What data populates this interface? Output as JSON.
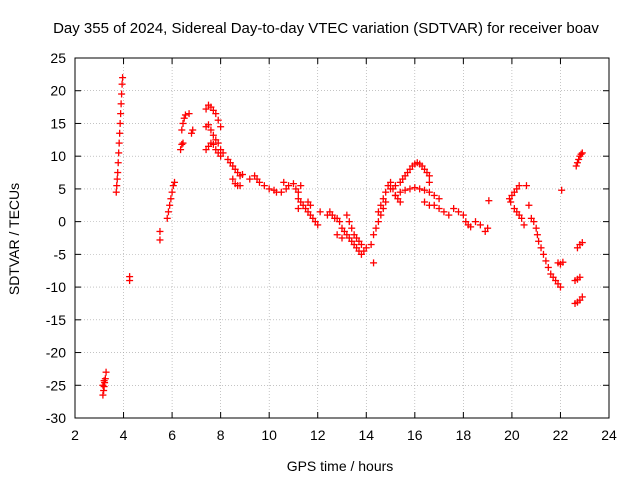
{
  "chart_data": {
    "type": "scatter",
    "title": "Day 355 of 2024, Sidereal Day-to-day VTEC variation (SDTVAR) for receiver boav",
    "xlabel": "GPS time / hours",
    "ylabel": "SDTVAR / TECUs",
    "xlim": [
      2,
      24
    ],
    "ylim": [
      -30,
      25
    ],
    "xticks": [
      2,
      4,
      6,
      8,
      10,
      12,
      14,
      16,
      18,
      20,
      22,
      24
    ],
    "yticks": [
      -30,
      -25,
      -20,
      -15,
      -10,
      -5,
      0,
      5,
      10,
      15,
      20,
      25
    ],
    "grid": true,
    "marker": "plus",
    "color": "#ff0000",
    "series": [
      {
        "name": "SDTVAR",
        "points": [
          [
            3.15,
            -26.5
          ],
          [
            3.18,
            -25.8
          ],
          [
            3.2,
            -25.2
          ],
          [
            3.22,
            -24.6
          ],
          [
            3.25,
            -24.0
          ],
          [
            3.28,
            -23.0
          ],
          [
            3.15,
            -25.0
          ],
          [
            3.2,
            -24.3
          ],
          [
            3.7,
            4.5
          ],
          [
            3.72,
            5.5
          ],
          [
            3.74,
            6.5
          ],
          [
            3.76,
            7.5
          ],
          [
            3.78,
            9.0
          ],
          [
            3.8,
            10.5
          ],
          [
            3.82,
            12.0
          ],
          [
            3.84,
            13.5
          ],
          [
            3.86,
            15.0
          ],
          [
            3.88,
            16.5
          ],
          [
            3.9,
            18.0
          ],
          [
            3.92,
            19.5
          ],
          [
            3.94,
            21.0
          ],
          [
            3.96,
            22.0
          ],
          [
            4.25,
            -8.4
          ],
          [
            4.25,
            -9.0
          ],
          [
            5.5,
            -1.5
          ],
          [
            5.5,
            -2.8
          ],
          [
            5.8,
            0.5
          ],
          [
            5.85,
            1.5
          ],
          [
            5.9,
            2.5
          ],
          [
            5.95,
            3.5
          ],
          [
            6.0,
            4.5
          ],
          [
            6.05,
            5.5
          ],
          [
            6.1,
            6.0
          ],
          [
            6.35,
            11.0
          ],
          [
            6.4,
            11.8
          ],
          [
            6.45,
            12.0
          ],
          [
            6.4,
            14.0
          ],
          [
            6.45,
            15.0
          ],
          [
            6.5,
            15.8
          ],
          [
            6.55,
            16.3
          ],
          [
            6.7,
            16.5
          ],
          [
            6.8,
            13.5
          ],
          [
            6.85,
            14.0
          ],
          [
            7.4,
            17.2
          ],
          [
            7.5,
            17.8
          ],
          [
            7.6,
            17.5
          ],
          [
            7.7,
            17.0
          ],
          [
            7.8,
            16.5
          ],
          [
            7.9,
            15.5
          ],
          [
            8.0,
            14.5
          ],
          [
            7.4,
            14.5
          ],
          [
            7.5,
            14.8
          ],
          [
            7.6,
            14.0
          ],
          [
            7.7,
            13.2
          ],
          [
            7.8,
            12.5
          ],
          [
            7.9,
            12.0
          ],
          [
            8.0,
            11.0
          ],
          [
            8.1,
            10.5
          ],
          [
            7.4,
            11.0
          ],
          [
            7.5,
            11.5
          ],
          [
            7.6,
            12.0
          ],
          [
            7.7,
            11.8
          ],
          [
            7.8,
            11.0
          ],
          [
            7.9,
            10.5
          ],
          [
            8.0,
            10.0
          ],
          [
            8.3,
            9.5
          ],
          [
            8.4,
            9.0
          ],
          [
            8.5,
            8.5
          ],
          [
            8.6,
            8.0
          ],
          [
            8.7,
            7.5
          ],
          [
            8.8,
            7.0
          ],
          [
            8.9,
            7.2
          ],
          [
            8.5,
            6.5
          ],
          [
            8.6,
            5.8
          ],
          [
            8.7,
            5.5
          ],
          [
            8.8,
            5.5
          ],
          [
            9.2,
            6.5
          ],
          [
            9.4,
            7.0
          ],
          [
            9.5,
            6.5
          ],
          [
            9.6,
            6.0
          ],
          [
            9.8,
            5.5
          ],
          [
            10.0,
            5.0
          ],
          [
            10.2,
            4.8
          ],
          [
            10.3,
            4.5
          ],
          [
            10.5,
            4.5
          ],
          [
            10.7,
            5.0
          ],
          [
            10.6,
            6.0
          ],
          [
            10.8,
            5.5
          ],
          [
            11.0,
            5.8
          ],
          [
            11.1,
            5.0
          ],
          [
            11.2,
            4.5
          ],
          [
            11.2,
            3.5
          ],
          [
            11.3,
            3.0
          ],
          [
            11.2,
            2.0
          ],
          [
            11.3,
            5.5
          ],
          [
            11.4,
            2.5
          ],
          [
            11.5,
            2.0
          ],
          [
            11.6,
            1.5
          ],
          [
            11.7,
            1.0
          ],
          [
            11.8,
            0.5
          ],
          [
            11.9,
            0.0
          ],
          [
            12.0,
            -0.5
          ],
          [
            12.1,
            1.5
          ],
          [
            11.6,
            3.0
          ],
          [
            11.7,
            2.5
          ],
          [
            12.4,
            1.0
          ],
          [
            12.5,
            1.5
          ],
          [
            12.6,
            1.0
          ],
          [
            12.7,
            0.5
          ],
          [
            12.8,
            0.5
          ],
          [
            12.9,
            0.0
          ],
          [
            13.0,
            -1.0
          ],
          [
            13.1,
            -1.5
          ],
          [
            13.2,
            -2.0
          ],
          [
            13.3,
            -2.5
          ],
          [
            13.4,
            -3.0
          ],
          [
            13.5,
            -3.5
          ],
          [
            13.6,
            -4.0
          ],
          [
            13.7,
            -4.5
          ],
          [
            13.8,
            -5.0
          ],
          [
            13.9,
            -4.5
          ],
          [
            14.0,
            -4.0
          ],
          [
            13.2,
            1.0
          ],
          [
            13.3,
            0.0
          ],
          [
            13.4,
            -1.0
          ],
          [
            13.5,
            -2.0
          ],
          [
            13.6,
            -2.5
          ],
          [
            13.7,
            -3.0
          ],
          [
            13.8,
            -3.5
          ],
          [
            12.8,
            -2.0
          ],
          [
            13.0,
            -2.5
          ],
          [
            14.3,
            -6.3
          ],
          [
            14.2,
            -3.5
          ],
          [
            14.3,
            -2.0
          ],
          [
            14.4,
            -1.0
          ],
          [
            14.5,
            0.0
          ],
          [
            14.6,
            1.0
          ],
          [
            14.7,
            2.0
          ],
          [
            14.8,
            3.0
          ],
          [
            14.5,
            1.5
          ],
          [
            14.6,
            2.5
          ],
          [
            14.7,
            3.5
          ],
          [
            14.8,
            4.5
          ],
          [
            14.9,
            5.5
          ],
          [
            15.0,
            6.0
          ],
          [
            15.1,
            5.0
          ],
          [
            15.2,
            4.0
          ],
          [
            15.3,
            3.5
          ],
          [
            15.4,
            3.0
          ],
          [
            15.0,
            5.0
          ],
          [
            15.2,
            5.5
          ],
          [
            15.4,
            6.0
          ],
          [
            15.5,
            6.5
          ],
          [
            15.6,
            7.0
          ],
          [
            15.7,
            7.5
          ],
          [
            15.8,
            8.0
          ],
          [
            15.9,
            8.5
          ],
          [
            16.0,
            8.8
          ],
          [
            16.1,
            9.0
          ],
          [
            16.2,
            8.8
          ],
          [
            16.3,
            8.5
          ],
          [
            16.4,
            8.0
          ],
          [
            16.5,
            7.5
          ],
          [
            16.6,
            7.0
          ],
          [
            16.6,
            6.0
          ],
          [
            15.2,
            4.0
          ],
          [
            15.4,
            4.5
          ],
          [
            15.6,
            4.8
          ],
          [
            15.8,
            5.0
          ],
          [
            16.0,
            5.2
          ],
          [
            16.2,
            5.0
          ],
          [
            16.4,
            4.8
          ],
          [
            16.6,
            4.5
          ],
          [
            16.8,
            4.0
          ],
          [
            17.0,
            3.5
          ],
          [
            16.4,
            3.0
          ],
          [
            16.6,
            2.5
          ],
          [
            16.8,
            2.5
          ],
          [
            17.0,
            2.0
          ],
          [
            17.2,
            1.5
          ],
          [
            17.4,
            1.0
          ],
          [
            17.6,
            2.0
          ],
          [
            17.8,
            1.5
          ],
          [
            18.0,
            1.0
          ],
          [
            18.1,
            0.0
          ],
          [
            18.2,
            -0.5
          ],
          [
            18.3,
            -0.8
          ],
          [
            18.5,
            0.0
          ],
          [
            18.7,
            -0.5
          ],
          [
            18.9,
            -1.5
          ],
          [
            19.0,
            -1.0
          ],
          [
            19.05,
            3.2
          ],
          [
            19.9,
            3.5
          ],
          [
            20.0,
            4.0
          ],
          [
            20.1,
            4.5
          ],
          [
            20.2,
            5.0
          ],
          [
            20.3,
            5.5
          ],
          [
            19.95,
            3.0
          ],
          [
            20.1,
            2.0
          ],
          [
            20.2,
            1.5
          ],
          [
            20.3,
            1.0
          ],
          [
            20.4,
            0.5
          ],
          [
            20.6,
            5.5
          ],
          [
            20.5,
            -0.5
          ],
          [
            20.7,
            2.5
          ],
          [
            20.8,
            0.5
          ],
          [
            20.9,
            0.0
          ],
          [
            21.0,
            -1.0
          ],
          [
            21.05,
            -2.0
          ],
          [
            21.1,
            -3.0
          ],
          [
            21.2,
            -4.0
          ],
          [
            21.3,
            -5.0
          ],
          [
            21.4,
            -6.0
          ],
          [
            21.5,
            -7.0
          ],
          [
            21.6,
            -8.0
          ],
          [
            21.7,
            -8.5
          ],
          [
            21.8,
            -9.0
          ],
          [
            21.9,
            -9.5
          ],
          [
            22.0,
            -10.0
          ],
          [
            21.9,
            -6.3
          ],
          [
            22.0,
            -6.5
          ],
          [
            22.1,
            -6.2
          ],
          [
            22.05,
            4.8
          ],
          [
            22.6,
            -12.5
          ],
          [
            22.7,
            -12.3
          ],
          [
            22.8,
            -12.0
          ],
          [
            22.9,
            -11.5
          ],
          [
            22.6,
            -9.0
          ],
          [
            22.7,
            -8.8
          ],
          [
            22.8,
            -8.5
          ],
          [
            22.7,
            -4.0
          ],
          [
            22.8,
            -3.5
          ],
          [
            22.9,
            -3.2
          ],
          [
            22.65,
            8.5
          ],
          [
            22.7,
            9.0
          ],
          [
            22.75,
            9.5
          ],
          [
            22.8,
            10.0
          ],
          [
            22.85,
            10.3
          ],
          [
            22.9,
            10.5
          ]
        ]
      }
    ]
  }
}
